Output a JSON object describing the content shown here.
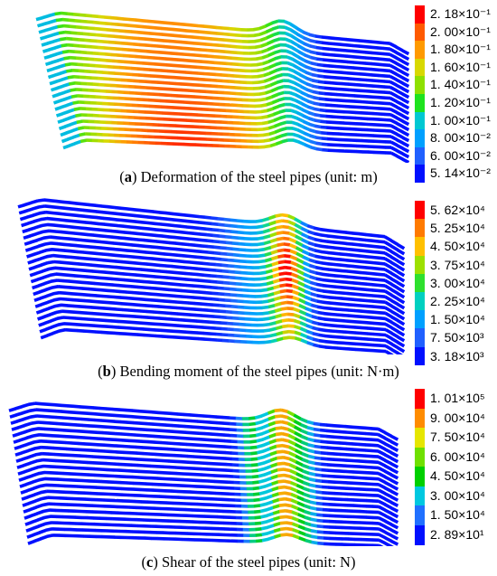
{
  "panels": [
    {
      "id": "a",
      "caption": {
        "letter": "a",
        "text": " Deformation of the steel pipes (unit: m)"
      },
      "legend": {
        "labels": [
          "2. 18×10⁻¹",
          "2. 00×10⁻¹",
          "1. 80×10⁻¹",
          "1. 60×10⁻¹",
          "1. 40×10⁻¹",
          "1. 20×10⁻¹",
          "1. 00×10⁻¹",
          "8. 00×10⁻²",
          "6. 00×10⁻²",
          "5. 14×10⁻²"
        ],
        "colors": [
          "#ff0000",
          "#ff5a00",
          "#ff9a00",
          "#d8d800",
          "#8ee000",
          "#1ee31e",
          "#00c8d2",
          "#00a0ff",
          "#2060ff",
          "#0010ff"
        ]
      }
    },
    {
      "id": "b",
      "caption": {
        "letter": "b",
        "text": " Bending moment of the steel pipes (unit: N·m)"
      },
      "legend": {
        "labels": [
          "5. 62×10⁴",
          "5. 25×10⁴",
          "4. 50×10⁴",
          "3. 75×10⁴",
          "3. 00×10⁴",
          "2. 25×10⁴",
          "1. 50×10⁴",
          "7. 50×10³",
          "3. 18×10³"
        ],
        "colors": [
          "#ff0000",
          "#ff7a00",
          "#ffc000",
          "#9de000",
          "#2ee02e",
          "#00d0c0",
          "#00a0ff",
          "#2060ff",
          "#0010ff"
        ]
      }
    },
    {
      "id": "c",
      "caption": {
        "letter": "c",
        "text": " Shear of the steel pipes (unit: N)"
      },
      "legend": {
        "labels": [
          "1. 01×10⁵",
          "9. 00×10⁴",
          "7. 50×10⁴",
          "6. 00×10⁴",
          "4. 50×10⁴",
          "3. 00×10⁴",
          "1. 50×10⁴",
          "2. 89×10¹"
        ],
        "colors": [
          "#ff0000",
          "#ff8c00",
          "#e6e600",
          "#6fe000",
          "#00d000",
          "#00c8e0",
          "#2070ff",
          "#0010ff"
        ]
      }
    }
  ]
}
